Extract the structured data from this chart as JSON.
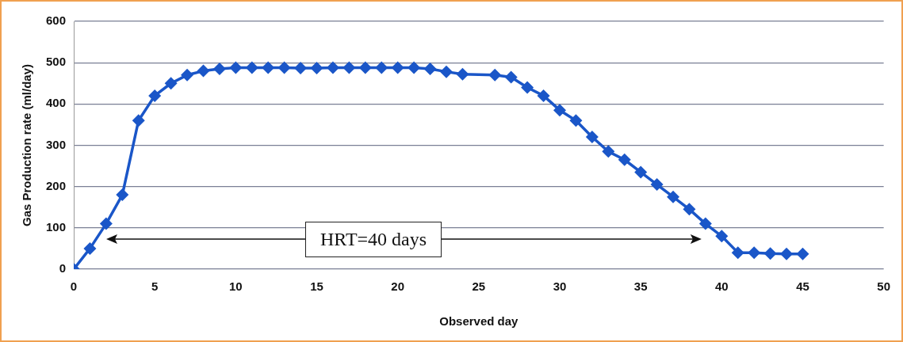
{
  "chart_data": {
    "type": "line",
    "xlabel": "Observed day",
    "ylabel": "Gas Production rate (ml/day)",
    "x": [
      0,
      1,
      2,
      3,
      4,
      5,
      6,
      7,
      8,
      9,
      10,
      11,
      12,
      13,
      14,
      15,
      16,
      17,
      18,
      19,
      20,
      21,
      22,
      23,
      24,
      26,
      27,
      28,
      29,
      30,
      31,
      32,
      33,
      34,
      35,
      36,
      37,
      38,
      39,
      40,
      41,
      42,
      43,
      44,
      45
    ],
    "series": [
      {
        "color": "#1a56c8",
        "values": [
          0,
          50,
          110,
          180,
          360,
          420,
          450,
          470,
          480,
          485,
          488,
          488,
          488,
          488,
          487,
          487,
          488,
          488,
          488,
          488,
          488,
          488,
          485,
          478,
          472,
          470,
          465,
          440,
          420,
          385,
          360,
          320,
          285,
          265,
          235,
          205,
          175,
          145,
          110,
          80,
          40,
          40,
          38,
          37,
          37
        ]
      }
    ],
    "xlim": [
      0,
      50
    ],
    "xticks": [
      0,
      5,
      10,
      15,
      20,
      25,
      30,
      35,
      40,
      45,
      50
    ],
    "ylim": [
      0,
      600
    ],
    "yticks": [
      0,
      100,
      200,
      300,
      400,
      500,
      600
    ],
    "grid": "y",
    "legend": false,
    "marker": "diamond",
    "line_style": "solid",
    "annotations": [
      "HRT=40 days"
    ]
  }
}
